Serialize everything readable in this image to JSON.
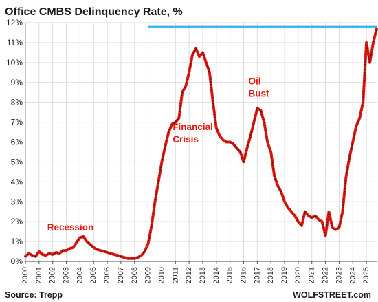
{
  "chart_data": {
    "type": "line",
    "title": "Office CMBS Delinquency Rate, %",
    "source": "Source: Trepp",
    "brand": "WOLFSTREET.com",
    "ylim": [
      0,
      12
    ],
    "yticks": [
      "0%",
      "1%",
      "2%",
      "3%",
      "4%",
      "5%",
      "6%",
      "7%",
      "8%",
      "9%",
      "10%",
      "11%",
      "12%"
    ],
    "xticks": [
      "2000",
      "2001",
      "2002",
      "2003",
      "2004",
      "2005",
      "2006",
      "2007",
      "2008",
      "2009",
      "2010",
      "2011",
      "2012",
      "2013",
      "2014",
      "2015",
      "2016",
      "2017",
      "2018",
      "2019",
      "2020",
      "2021",
      "2022",
      "2023",
      "2024",
      "2025"
    ],
    "xlim": [
      2000.0,
      2025.75
    ],
    "grid": true,
    "series": [
      {
        "color": "#e8170f",
        "x": [
          2000.0,
          2000.25,
          2000.5,
          2000.75,
          2001.0,
          2001.25,
          2001.5,
          2001.75,
          2002.0,
          2002.25,
          2002.5,
          2002.75,
          2003.0,
          2003.25,
          2003.5,
          2003.75,
          2004.0,
          2004.25,
          2004.5,
          2004.75,
          2005.0,
          2005.25,
          2005.5,
          2005.75,
          2006.0,
          2006.25,
          2006.5,
          2006.75,
          2007.0,
          2007.25,
          2007.5,
          2007.75,
          2008.0,
          2008.25,
          2008.5,
          2008.75,
          2009.0,
          2009.25,
          2009.5,
          2009.75,
          2010.0,
          2010.25,
          2010.5,
          2010.75,
          2011.0,
          2011.25,
          2011.5,
          2011.75,
          2012.0,
          2012.25,
          2012.5,
          2012.75,
          2013.0,
          2013.25,
          2013.5,
          2013.75,
          2014.0,
          2014.25,
          2014.5,
          2014.75,
          2015.0,
          2015.25,
          2015.5,
          2015.75,
          2016.0,
          2016.25,
          2016.5,
          2016.75,
          2017.0,
          2017.25,
          2017.5,
          2017.75,
          2018.0,
          2018.25,
          2018.5,
          2018.75,
          2019.0,
          2019.25,
          2019.5,
          2019.75,
          2020.0,
          2020.25,
          2020.5,
          2020.75,
          2021.0,
          2021.25,
          2021.5,
          2021.75,
          2022.0,
          2022.25,
          2022.5,
          2022.75,
          2023.0,
          2023.25,
          2023.5,
          2023.75,
          2024.0,
          2024.25,
          2024.5,
          2024.75,
          2025.0,
          2025.25,
          2025.5,
          2025.75
        ],
        "values": [
          0.25,
          0.4,
          0.3,
          0.25,
          0.5,
          0.35,
          0.3,
          0.4,
          0.35,
          0.45,
          0.4,
          0.55,
          0.55,
          0.65,
          0.7,
          0.95,
          1.2,
          1.25,
          1.0,
          0.85,
          0.7,
          0.6,
          0.55,
          0.5,
          0.45,
          0.4,
          0.35,
          0.3,
          0.25,
          0.2,
          0.15,
          0.15,
          0.15,
          0.2,
          0.3,
          0.5,
          0.9,
          1.8,
          3.0,
          4.0,
          5.0,
          5.8,
          6.5,
          6.9,
          7.0,
          7.2,
          8.5,
          8.8,
          9.5,
          10.4,
          10.7,
          10.3,
          10.5,
          10.0,
          9.5,
          8.0,
          6.7,
          6.3,
          6.1,
          6.0,
          6.0,
          5.9,
          5.7,
          5.5,
          5.0,
          5.7,
          6.3,
          7.0,
          7.7,
          7.6,
          7.0,
          6.0,
          5.5,
          4.3,
          3.8,
          3.5,
          3.0,
          2.7,
          2.5,
          2.3,
          2.0,
          1.8,
          2.5,
          2.3,
          2.2,
          2.3,
          2.1,
          2.0,
          1.3,
          2.5,
          1.7,
          1.6,
          1.7,
          2.5,
          4.2,
          5.2,
          6.0,
          6.8,
          7.2,
          8.0,
          11.0,
          10.0,
          11.0,
          11.7
        ]
      }
    ],
    "reference_line": {
      "y": 11.8,
      "color": "#2fb3e8",
      "x_start": 2009.0,
      "x_end": 2025.75
    },
    "annotations": [
      {
        "lines": [
          "Recession"
        ],
        "x": 2001.6,
        "y": 1.55
      },
      {
        "lines": [
          "Financial",
          "Crisis"
        ],
        "x": 2010.8,
        "y": 6.6
      },
      {
        "lines": [
          "Oil",
          "Bust"
        ],
        "x": 2016.35,
        "y": 8.9
      }
    ]
  }
}
